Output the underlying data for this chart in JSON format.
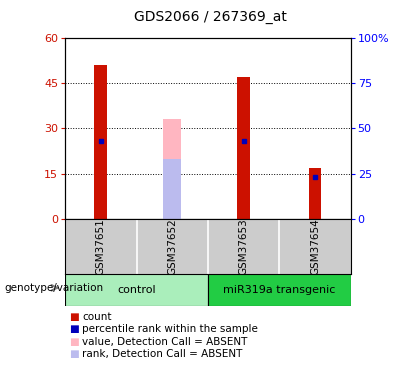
{
  "title": "GDS2066 / 267369_at",
  "samples": [
    "GSM37651",
    "GSM37652",
    "GSM37653",
    "GSM37654"
  ],
  "groups": [
    {
      "label": "control",
      "color": "#90EE90",
      "start": 0,
      "end": 2
    },
    {
      "label": "miR319a transgenic",
      "color": "#44DD55",
      "start": 2,
      "end": 4
    }
  ],
  "red_bars": [
    51,
    0,
    47,
    17
  ],
  "blue_marks": [
    26,
    0,
    26,
    14
  ],
  "pink_bar_value": 33,
  "pink_bar_rank": 20,
  "absent_idx": 1,
  "ylim_left": [
    0,
    60
  ],
  "ylim_right": [
    0,
    100
  ],
  "yticks_left": [
    0,
    15,
    30,
    45,
    60
  ],
  "yticks_right": [
    0,
    25,
    50,
    75,
    100
  ],
  "left_tick_labels": [
    "0",
    "15",
    "30",
    "45",
    "60"
  ],
  "right_tick_labels": [
    "0",
    "25",
    "50",
    "75",
    "100%"
  ],
  "red_color": "#CC1100",
  "blue_color": "#0000BB",
  "pink_bar_color": "#FFB6C1",
  "pink_rank_color": "#BBBBEE",
  "sample_area_color": "#CCCCCC",
  "control_color": "#AAEEBB",
  "transgenic_color": "#22CC44",
  "legend_items": [
    {
      "color": "#CC1100",
      "label": "count"
    },
    {
      "color": "#0000BB",
      "label": "percentile rank within the sample"
    },
    {
      "color": "#FFB6C1",
      "label": "value, Detection Call = ABSENT"
    },
    {
      "color": "#BBBBEE",
      "label": "rank, Detection Call = ABSENT"
    }
  ],
  "group_label_text": "genotype/variation"
}
